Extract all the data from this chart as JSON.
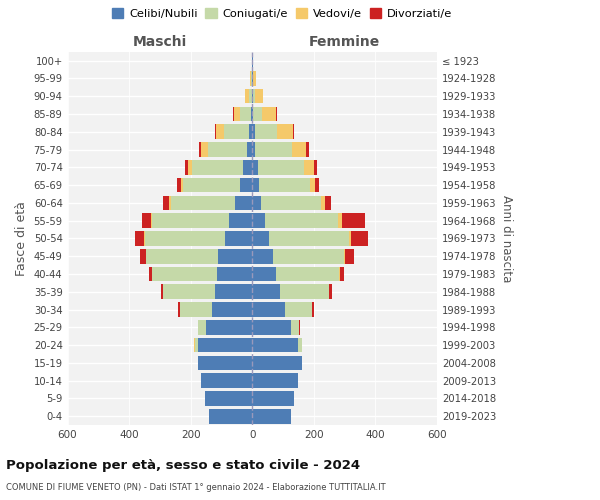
{
  "age_groups_bottom_to_top": [
    "0-4",
    "5-9",
    "10-14",
    "15-19",
    "20-24",
    "25-29",
    "30-34",
    "35-39",
    "40-44",
    "45-49",
    "50-54",
    "55-59",
    "60-64",
    "65-69",
    "70-74",
    "75-79",
    "80-84",
    "85-89",
    "90-94",
    "95-99",
    "100+"
  ],
  "birth_years_bottom_to_top": [
    "2019-2023",
    "2014-2018",
    "2009-2013",
    "2004-2008",
    "1999-2003",
    "1994-1998",
    "1989-1993",
    "1984-1988",
    "1979-1983",
    "1974-1978",
    "1969-1973",
    "1964-1968",
    "1959-1963",
    "1954-1958",
    "1949-1953",
    "1944-1948",
    "1939-1943",
    "1934-1938",
    "1929-1933",
    "1924-1928",
    "≤ 1923"
  ],
  "colors": {
    "celibe": "#4e7db5",
    "coniugato": "#c5d9a8",
    "vedovo": "#f5c96a",
    "divorziato": "#cc2222"
  },
  "maschi": {
    "celibe": [
      140,
      155,
      165,
      175,
      175,
      150,
      130,
      120,
      115,
      110,
      90,
      75,
      55,
      40,
      30,
      18,
      12,
      5,
      2,
      1,
      1
    ],
    "coniugato": [
      0,
      0,
      0,
      0,
      12,
      25,
      105,
      170,
      210,
      235,
      260,
      250,
      210,
      185,
      165,
      125,
      80,
      35,
      10,
      3,
      1
    ],
    "vedovo": [
      0,
      0,
      0,
      0,
      2,
      0,
      0,
      0,
      0,
      1,
      2,
      3,
      5,
      8,
      15,
      22,
      25,
      20,
      12,
      2,
      0
    ],
    "divorziato": [
      0,
      0,
      0,
      0,
      0,
      2,
      5,
      8,
      10,
      18,
      30,
      30,
      20,
      12,
      10,
      8,
      5,
      2,
      1,
      0,
      0
    ]
  },
  "femmine": {
    "nubile": [
      125,
      135,
      150,
      160,
      150,
      125,
      105,
      90,
      78,
      68,
      55,
      40,
      28,
      22,
      18,
      10,
      8,
      4,
      2,
      1,
      1
    ],
    "coniugata": [
      0,
      0,
      0,
      0,
      12,
      28,
      90,
      160,
      205,
      230,
      260,
      240,
      195,
      165,
      150,
      118,
      72,
      28,
      8,
      2,
      0
    ],
    "vedova": [
      0,
      0,
      0,
      0,
      0,
      0,
      0,
      0,
      2,
      4,
      5,
      10,
      13,
      18,
      33,
      48,
      52,
      45,
      25,
      8,
      2
    ],
    "divorziata": [
      0,
      0,
      0,
      0,
      0,
      2,
      4,
      8,
      12,
      28,
      55,
      75,
      20,
      12,
      10,
      8,
      4,
      2,
      1,
      0,
      0
    ]
  },
  "title": "Popolazione per età, sesso e stato civile - 2024",
  "subtitle": "COMUNE DI FIUME VENETO (PN) - Dati ISTAT 1° gennaio 2024 - Elaborazione TUTTITALIA.IT",
  "xlabel_left": "Maschi",
  "xlabel_right": "Femmine",
  "ylabel_left": "Fasce di età",
  "ylabel_right": "Anni di nascita",
  "xlim": 600,
  "legend_labels": [
    "Celibi/Nubili",
    "Coniugati/e",
    "Vedovi/e",
    "Divorziati/e"
  ],
  "bg_color": "#f2f2f2",
  "grid_color": "#dddddd"
}
